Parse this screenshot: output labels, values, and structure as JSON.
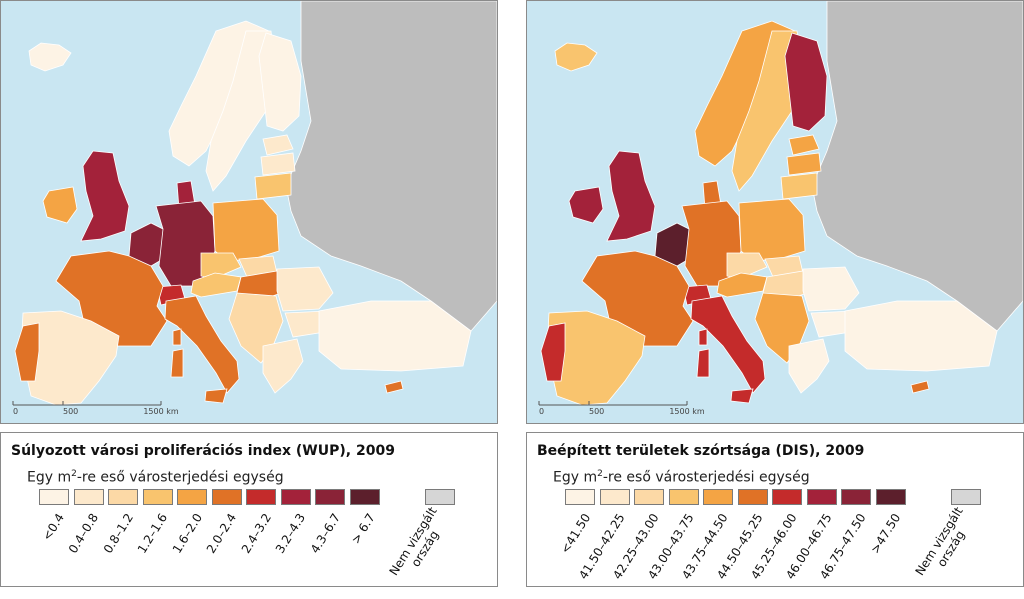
{
  "panels": [
    {
      "title": "Súlyozott városi proliferációs index (WUP), 2009",
      "subtitle_pre": "Egy m",
      "subtitle_sup": "2",
      "subtitle_post": "-re eső városterjedési egység",
      "scale": [
        "0",
        "500",
        "1500 km"
      ],
      "classes": [
        {
          "label": "<0.4",
          "color": "#fdf3e5"
        },
        {
          "label": "0.4–0.8",
          "color": "#fde9cc"
        },
        {
          "label": "0.8–1.2",
          "color": "#fcd9a6"
        },
        {
          "label": "1.2–1.6",
          "color": "#f9c46e"
        },
        {
          "label": "1.6–2.0",
          "color": "#f4a444"
        },
        {
          "label": "2.0–2.4",
          "color": "#e07226"
        },
        {
          "label": "2.4–3.2",
          "color": "#c42b2b"
        },
        {
          "label": "3.2–4.3",
          "color": "#a3223a"
        },
        {
          "label": "4.3–6.7",
          "color": "#8a2337"
        },
        {
          "label": "> 6.7",
          "color": "#5c1f2c"
        }
      ],
      "not_examined": {
        "line1": "Nem vizsgált",
        "line2": "ország",
        "color": "#d6d6d6"
      }
    },
    {
      "title": "Beépített területek szórtsága (DIS), 2009",
      "subtitle_pre": "Egy m",
      "subtitle_sup": "2",
      "subtitle_post": "-re eső városterjedési egység",
      "scale": [
        "0",
        "500",
        "1500 km"
      ],
      "classes": [
        {
          "label": "<41.50",
          "color": "#fdf3e5"
        },
        {
          "label": "41.50–42.25",
          "color": "#fde9cc"
        },
        {
          "label": "42.25–43.00",
          "color": "#fcd9a6"
        },
        {
          "label": "43.00–43.75",
          "color": "#f9c46e"
        },
        {
          "label": "43.75–44.50",
          "color": "#f4a444"
        },
        {
          "label": "44.50–45.25",
          "color": "#e07226"
        },
        {
          "label": "45.25–46.00",
          "color": "#c42b2b"
        },
        {
          "label": "46.00–46.75",
          "color": "#a3223a"
        },
        {
          "label": "46.75–47.50",
          "color": "#8a2337"
        },
        {
          "label": ">47.50",
          "color": "#5c1f2c"
        }
      ],
      "not_examined": {
        "line1": "Nem vizsgált",
        "line2": "ország",
        "color": "#d6d6d6"
      }
    }
  ],
  "map_colors": {
    "sea": "#c9e6f2",
    "non_examined": "#bdbdbd",
    "left": {
      "iceland": "#fdf3e5",
      "norway": "#fdf3e5",
      "sweden": "#fdf3e5",
      "finland": "#fdf3e5",
      "estonia": "#fde9cc",
      "latvia": "#fde9cc",
      "lithuania": "#f9c46e",
      "uk": "#a3223a",
      "ireland": "#f4a444",
      "france": "#e07226",
      "spain": "#fde9cc",
      "portugal": "#e07226",
      "belgium_nl": "#8a2337",
      "germany": "#8a2337",
      "denmark": "#a3223a",
      "poland": "#f4a444",
      "czech": "#f9c46e",
      "austria": "#f9c46e",
      "slovakia": "#fcd9a6",
      "hungary": "#e07226",
      "switzerland": "#c42b2b",
      "italy": "#e07226",
      "romania": "#fde9cc",
      "bulgaria": "#fde9cc",
      "balkans": "#fcd9a6",
      "greece": "#fde9cc",
      "turkey": "#fdf3e5",
      "cyprus": "#e07226",
      "corsica": "#e07226"
    },
    "right": {
      "iceland": "#f9c46e",
      "norway": "#f4a444",
      "sweden": "#f9c46e",
      "finland": "#a3223a",
      "estonia": "#f4a444",
      "latvia": "#f4a444",
      "lithuania": "#f9c46e",
      "uk": "#a3223a",
      "ireland": "#a3223a",
      "france": "#e07226",
      "spain": "#f9c46e",
      "portugal": "#c42b2b",
      "belgium_nl": "#5c1f2c",
      "germany": "#e07226",
      "denmark": "#e07226",
      "poland": "#f4a444",
      "czech": "#fcd9a6",
      "austria": "#f4a444",
      "slovakia": "#fcd9a6",
      "hungary": "#fcd9a6",
      "switzerland": "#c42b2b",
      "italy": "#c42b2b",
      "romania": "#fdf3e5",
      "bulgaria": "#fdf3e5",
      "balkans": "#f4a444",
      "greece": "#fdf3e5",
      "turkey": "#fdf3e5",
      "cyprus": "#e07226",
      "corsica": "#c42b2b"
    }
  }
}
